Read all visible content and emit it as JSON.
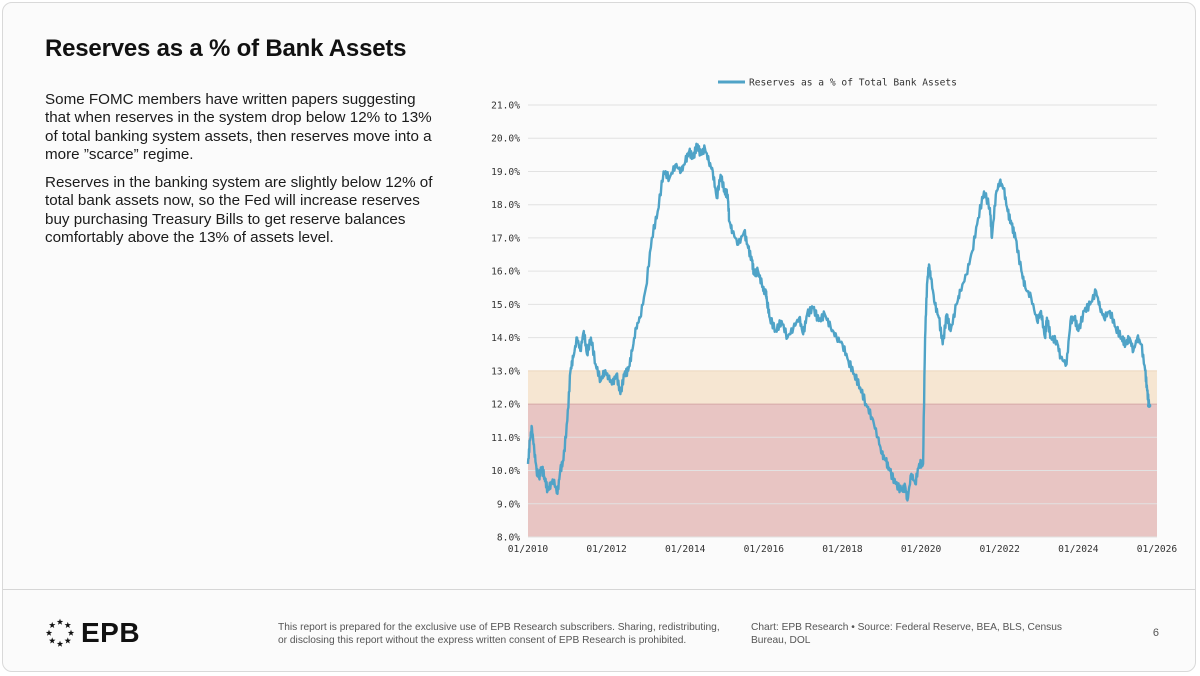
{
  "page": {
    "title": "Reserves as a % of Bank Assets",
    "paragraphs": [
      "Some FOMC members have written papers suggesting that when reserves in the system drop below 12% to 13% of total banking system assets, then reserves move into a more ”scarce” regime.",
      "Reserves in the banking system are slightly below 12% of total bank assets now, so the Fed will increase reserves buy purchasing Treasury Bills to get reserve balances comfortably above the 13% of assets level."
    ]
  },
  "footer": {
    "logo_text": "EPB",
    "disclaimer": "This report is prepared for the exclusive use of EPB Research subscribers. Sharing, redistributing, or disclosing this report without the express written consent of EPB Research is prohibited.",
    "source": "Chart: EPB Research  •  Source: Federal Reserve, BEA, BLS, Census Bureau, DOL",
    "page_number": "6"
  },
  "colors": {
    "line": "#4fa3c7",
    "scarce_zone": "#e8c5c3",
    "warning_zone": "#f6e6d2",
    "grid": "#e2e2e2"
  },
  "chart_data": {
    "type": "line",
    "title": "",
    "legend": {
      "label": "Reserves as a % of Total Bank Assets",
      "position": "top-center"
    },
    "xlabel": "",
    "ylabel": "",
    "xlim": [
      2010.0,
      2026.0
    ],
    "ylim": [
      8.0,
      21.0
    ],
    "xticks": [
      {
        "value": 2010,
        "label": "01/2010"
      },
      {
        "value": 2012,
        "label": "01/2012"
      },
      {
        "value": 2014,
        "label": "01/2014"
      },
      {
        "value": 2016,
        "label": "01/2016"
      },
      {
        "value": 2018,
        "label": "01/2018"
      },
      {
        "value": 2020,
        "label": "01/2020"
      },
      {
        "value": 2022,
        "label": "01/2022"
      },
      {
        "value": 2024,
        "label": "01/2024"
      },
      {
        "value": 2026,
        "label": "01/2026"
      }
    ],
    "yticks": [
      {
        "value": 8,
        "label": "8.0%"
      },
      {
        "value": 9,
        "label": "9.0%"
      },
      {
        "value": 10,
        "label": "10.0%"
      },
      {
        "value": 11,
        "label": "11.0%"
      },
      {
        "value": 12,
        "label": "12.0%"
      },
      {
        "value": 13,
        "label": "13.0%"
      },
      {
        "value": 14,
        "label": "14.0%"
      },
      {
        "value": 15,
        "label": "15.0%"
      },
      {
        "value": 16,
        "label": "16.0%"
      },
      {
        "value": 17,
        "label": "17.0%"
      },
      {
        "value": 18,
        "label": "18.0%"
      },
      {
        "value": 19,
        "label": "19.0%"
      },
      {
        "value": 20,
        "label": "20.0%"
      },
      {
        "value": 21,
        "label": "21.0%"
      }
    ],
    "bands": [
      {
        "name": "scarce",
        "from": 8.0,
        "to": 12.0
      },
      {
        "name": "warning",
        "from": 12.0,
        "to": 13.0
      }
    ],
    "series": [
      {
        "name": "Reserves as a % of Total Bank Assets",
        "x": [
          2010.0,
          2010.05,
          2010.1,
          2010.16,
          2010.22,
          2010.28,
          2010.35,
          2010.42,
          2010.5,
          2010.58,
          2010.65,
          2010.75,
          2010.82,
          2010.9,
          2011.0,
          2011.08,
          2011.15,
          2011.25,
          2011.33,
          2011.42,
          2011.5,
          2011.6,
          2011.72,
          2011.85,
          2011.95,
          2012.05,
          2012.15,
          2012.25,
          2012.35,
          2012.45,
          2012.55,
          2012.65,
          2012.75,
          2012.85,
          2013.0,
          2013.15,
          2013.3,
          2013.45,
          2013.6,
          2013.75,
          2013.9,
          2014.0,
          2014.1,
          2014.2,
          2014.3,
          2014.4,
          2014.5,
          2014.6,
          2014.7,
          2014.8,
          2014.9,
          2015.0,
          2015.08,
          2015.12,
          2015.2,
          2015.35,
          2015.5,
          2015.6,
          2015.7,
          2015.75,
          2015.85,
          2015.95,
          2016.0,
          2016.05,
          2016.08,
          2016.15,
          2016.3,
          2016.45,
          2016.6,
          2016.75,
          2016.9,
          2017.0,
          2017.1,
          2017.25,
          2017.4,
          2017.55,
          2017.7,
          2017.85,
          2018.0,
          2018.15,
          2018.3,
          2018.45,
          2018.6,
          2018.75,
          2018.9,
          2019.0,
          2019.1,
          2019.2,
          2019.35,
          2019.5,
          2019.6,
          2019.65,
          2019.75,
          2019.85,
          2019.95,
          2020.05,
          2020.1,
          2020.15,
          2020.2,
          2020.25,
          2020.35,
          2020.45,
          2020.55,
          2020.65,
          2020.75,
          2020.9,
          2021.0,
          2021.15,
          2021.3,
          2021.45,
          2021.6,
          2021.75,
          2021.8,
          2021.9,
          2022.0,
          2022.1,
          2022.2,
          2022.3,
          2022.4,
          2022.55,
          2022.65,
          2022.8,
          2022.95,
          2023.05,
          2023.15,
          2023.2,
          2023.3,
          2023.45,
          2023.55,
          2023.7,
          2023.8,
          2023.9,
          2024.0,
          2024.15,
          2024.3,
          2024.45,
          2024.55,
          2024.65,
          2024.8,
          2024.95,
          2025.1,
          2025.2,
          2025.3,
          2025.4,
          2025.5,
          2025.6,
          2025.7,
          2025.75,
          2025.8
        ],
        "y": [
          10.2,
          10.9,
          11.3,
          10.6,
          10.0,
          9.8,
          10.1,
          9.8,
          9.4,
          9.6,
          9.7,
          9.3,
          10.0,
          10.3,
          11.5,
          13.0,
          13.4,
          14.0,
          13.6,
          14.2,
          13.5,
          14.0,
          13.2,
          12.7,
          13.0,
          12.8,
          12.6,
          12.9,
          12.3,
          12.9,
          13.0,
          13.6,
          14.3,
          14.6,
          15.5,
          17.0,
          17.8,
          19.0,
          18.8,
          19.2,
          19.0,
          19.3,
          19.6,
          19.4,
          19.8,
          19.5,
          19.7,
          19.3,
          19.0,
          18.2,
          18.9,
          18.4,
          18.3,
          17.5,
          17.2,
          16.8,
          17.2,
          16.7,
          16.3,
          15.9,
          16.0,
          15.6,
          15.4,
          15.4,
          15.1,
          14.6,
          14.2,
          14.5,
          14.0,
          14.3,
          14.6,
          14.1,
          14.7,
          14.9,
          14.5,
          14.7,
          14.3,
          14.0,
          13.8,
          13.3,
          12.9,
          12.5,
          12.0,
          11.6,
          11.0,
          10.5,
          10.3,
          10.0,
          9.6,
          9.4,
          9.5,
          9.1,
          9.9,
          9.6,
          10.2,
          10.2,
          14.0,
          15.6,
          16.2,
          15.8,
          15.0,
          14.6,
          13.8,
          14.7,
          14.2,
          15.0,
          15.4,
          15.9,
          16.6,
          17.6,
          18.4,
          17.9,
          17.0,
          18.3,
          18.7,
          18.5,
          17.8,
          17.4,
          17.0,
          16.0,
          15.5,
          15.2,
          14.5,
          14.8,
          14.0,
          14.6,
          14.0,
          13.9,
          13.4,
          13.2,
          14.5,
          14.6,
          14.2,
          14.8,
          15.0,
          15.4,
          14.9,
          14.6,
          14.8,
          14.3,
          14.0,
          13.8,
          14.0,
          13.6,
          14.0,
          13.8,
          13.0,
          12.4,
          11.95
        ]
      }
    ]
  }
}
